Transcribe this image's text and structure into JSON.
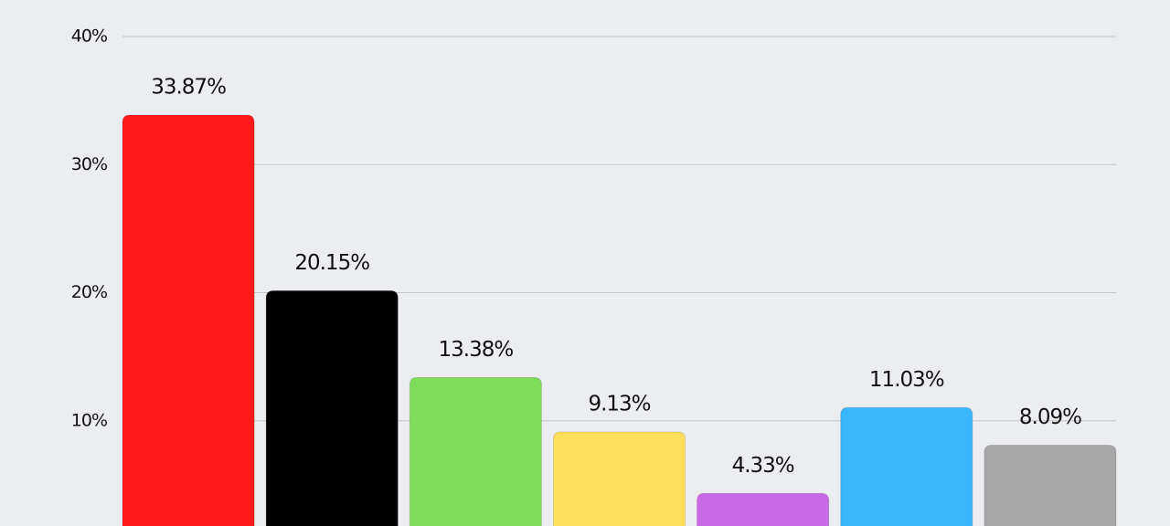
{
  "chart_data": {
    "type": "bar",
    "categories": [
      null,
      null,
      null,
      null,
      null,
      null,
      null
    ],
    "values": [
      33.87,
      20.15,
      13.38,
      9.13,
      4.33,
      11.03,
      8.09
    ],
    "value_labels": [
      "33.87%",
      "20.15%",
      "13.38%",
      "9.13%",
      "4.33%",
      "11.03%",
      "8.09%"
    ],
    "colors": [
      "#ff1a1a",
      "#000000",
      "#7fdb5a",
      "#ffde5a",
      "#c86ae6",
      "#3ab6ff",
      "#a6a6a6"
    ],
    "ylim": [
      0,
      40
    ],
    "yticks": [
      {
        "value": 10,
        "label": "10%"
      },
      {
        "value": 20,
        "label": "20%"
      },
      {
        "value": 30,
        "label": "30%"
      },
      {
        "value": 40,
        "label": "40%"
      }
    ],
    "grid": true
  }
}
